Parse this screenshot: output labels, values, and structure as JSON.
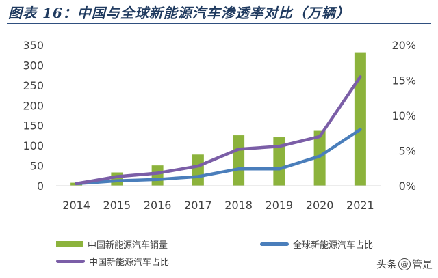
{
  "header": {
    "title": "图表 16：中国与全球新能源汽车渗透率对比（万辆）"
  },
  "chart_data": {
    "type": "bar",
    "categories": [
      "2014",
      "2015",
      "2016",
      "2017",
      "2018",
      "2019",
      "2020",
      "2021"
    ],
    "title": "图表 16：中国与全球新能源汽车渗透率对比（万辆）",
    "xlabel": "",
    "ylabel": "",
    "ylim": [
      0,
      350
    ],
    "y2lim": [
      0,
      0.2
    ],
    "yticks": [
      "0",
      "50",
      "100",
      "150",
      "200",
      "250",
      "300",
      "350"
    ],
    "y2ticks": [
      "0%",
      "5%",
      "10%",
      "15%",
      "20%"
    ],
    "grid": false,
    "legend_position": "bottom",
    "series": [
      {
        "name": "中国新能源汽车销量",
        "type": "bar",
        "axis": "left",
        "color": "#8cb33c",
        "values": [
          7.5,
          33.1,
          50.7,
          77.7,
          125.6,
          120.6,
          136.7,
          332
        ]
      },
      {
        "name": "全球新能源汽车占比",
        "type": "line",
        "axis": "right",
        "color": "#4a7ebb",
        "values": [
          0.003,
          0.007,
          0.009,
          0.013,
          0.024,
          0.024,
          0.042,
          0.08
        ]
      },
      {
        "name": "中国新能源汽车占比",
        "type": "line",
        "axis": "right",
        "color": "#7b5ea7",
        "values": [
          0.003,
          0.013,
          0.018,
          0.028,
          0.052,
          0.056,
          0.07,
          0.155
        ]
      }
    ]
  },
  "watermark": {
    "prefix": "头条",
    "at": "@",
    "name": "管是"
  }
}
